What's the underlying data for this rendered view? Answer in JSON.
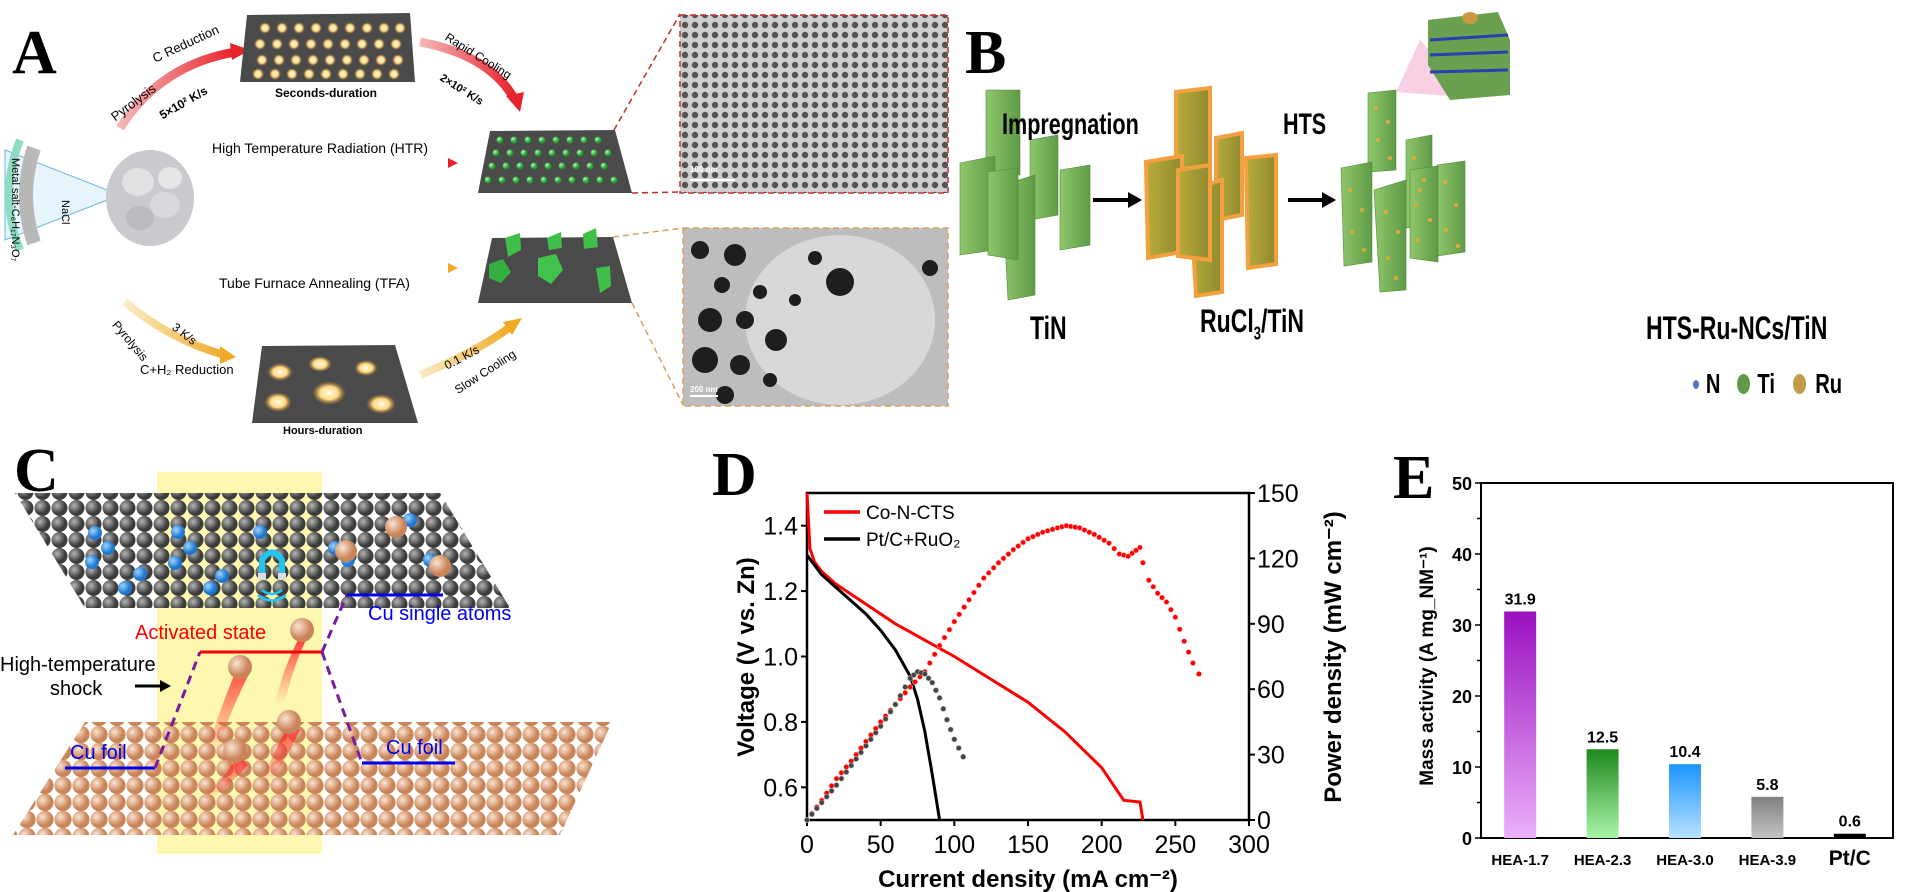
{
  "panels": {
    "A": {
      "letter": "A",
      "precursor_label": "Metal salt-C₆H₁₇N₃O₇",
      "nacl_label": "NaCl",
      "top_arrow_1": {
        "line1": "Pyrolysis",
        "line2": "C Reduction",
        "rate": "5×10² K/s"
      },
      "top_stage_label": "Seconds-duration",
      "top_arrow_2": {
        "label": "Rapid Cooling",
        "rate": "2×10² K/s"
      },
      "htr_label": "High Temperature Radiation (HTR)",
      "tfa_label": "Tube Furnace Annealing (TFA)",
      "bottom_arrow_1": {
        "line1": "Pyrolysis",
        "rate": "3 K/s",
        "line2": "C+H₂ Reduction"
      },
      "bottom_stage_label": "Hours-duration",
      "bottom_arrow_2": {
        "rate": "0.1 K/s",
        "label": "Slow Cooling"
      },
      "tem_top_scale": "100 nm",
      "tem_bottom_scale": "200 nm",
      "colors": {
        "fast": "#e8212a",
        "slow": "#f2b233",
        "particle_green": "#3fbf4a",
        "substrate": "#4a4a4a"
      }
    },
    "B": {
      "letter": "B",
      "step1_label": "TiN",
      "arrow1_label": "Impregnation",
      "step2_label_main": "RuCl",
      "step2_label_sub": "3",
      "step2_label_tail": "/TiN",
      "arrow2_label": "HTS",
      "step3_label": "HTS-Ru-NCs/TiN",
      "legend": [
        {
          "symbol": "N",
          "color": "#5a6fc0"
        },
        {
          "symbol": "Ti",
          "color": "#5f9a48"
        },
        {
          "symbol": "Ru",
          "color": "#c19a4a"
        }
      ]
    },
    "C": {
      "letter": "C",
      "activated_state": "Activated state",
      "shock_label_line1": "High-temperature",
      "shock_label_line2": "shock",
      "single_atoms_label": "Cu single atoms",
      "cu_foil_left": "Cu foil",
      "cu_foil_right": "Cu foil",
      "colors": {
        "activated": "#ff0000",
        "path": "#0000ee",
        "highlight": "#fdf7b0",
        "carbon": "#606060",
        "nitrogen": "#2e8ee0",
        "copper": "#e0a57a"
      }
    },
    "D": {
      "letter": "D"
    },
    "E": {
      "letter": "E"
    }
  },
  "chart_data": [
    {
      "panel": "D",
      "type": "line",
      "title": "",
      "xlabel": "Current density (mA cm⁻²)",
      "ylabel": "Voltage (V vs. Zn)",
      "y2label": "Power density (mW cm⁻²)",
      "xlim": [
        0,
        300
      ],
      "ylim": [
        0.5,
        1.5
      ],
      "y2lim": [
        0,
        150
      ],
      "x_ticks": [
        "0",
        "50",
        "100",
        "150",
        "200",
        "250",
        "300"
      ],
      "y_ticks": [
        "0.6",
        "0.8",
        "1.0",
        "1.2",
        "1.4"
      ],
      "y2_ticks": [
        "0",
        "30",
        "60",
        "90",
        "120",
        "150"
      ],
      "legend": [
        {
          "name": "Co-N-CTS",
          "color": "#ff0000"
        },
        {
          "name": "Pt/C+RuO₂",
          "color": "#000000"
        }
      ],
      "legend_position": "upper left",
      "series": [
        {
          "name": "Co-N-CTS polarization",
          "axis": "left",
          "color": "#ff0000",
          "style": "line",
          "x": [
            0,
            2,
            5,
            10,
            20,
            40,
            60,
            80,
            100,
            125,
            150,
            175,
            200,
            215,
            226,
            228
          ],
          "y": [
            1.5,
            1.33,
            1.29,
            1.26,
            1.22,
            1.16,
            1.1,
            1.05,
            1.0,
            0.93,
            0.86,
            0.77,
            0.66,
            0.56,
            0.555,
            0.5
          ]
        },
        {
          "name": "Pt/C+RuO₂ polarization",
          "axis": "left",
          "color": "#000000",
          "style": "line",
          "x": [
            0,
            5,
            10,
            20,
            30,
            40,
            50,
            60,
            70,
            75,
            80,
            85,
            90
          ],
          "y": [
            1.31,
            1.28,
            1.25,
            1.21,
            1.17,
            1.13,
            1.08,
            1.02,
            0.94,
            0.87,
            0.77,
            0.64,
            0.5
          ]
        },
        {
          "name": "Co-N-CTS power density",
          "axis": "right",
          "color": "#ff0000",
          "style": "markers",
          "x": [
            0,
            10,
            20,
            30,
            40,
            50,
            60,
            70,
            80,
            90,
            100,
            110,
            120,
            130,
            140,
            150,
            160,
            170,
            176,
            185,
            195,
            205,
            212,
            218,
            226,
            228,
            232,
            238,
            244,
            250,
            256,
            262,
            266
          ],
          "y": [
            0,
            9,
            19,
            27,
            36,
            45,
            53,
            61,
            68,
            80,
            91,
            101,
            111,
            118,
            124,
            129,
            132,
            134,
            135,
            134,
            131,
            127,
            122,
            121,
            125,
            118,
            110,
            104,
            100,
            93,
            82,
            72,
            67
          ]
        },
        {
          "name": "Pt/C+RuO₂ power density",
          "axis": "right",
          "color": "#444444",
          "style": "markers",
          "x": [
            0,
            10,
            20,
            30,
            40,
            50,
            60,
            70,
            75,
            80,
            85,
            90,
            95,
            100,
            106
          ],
          "y": [
            0,
            8,
            16,
            25,
            34,
            43,
            53,
            65,
            68,
            67,
            63,
            56,
            46,
            37,
            29
          ]
        }
      ]
    },
    {
      "panel": "E",
      "type": "bar",
      "title": "",
      "xlabel": "",
      "ylabel": "Mass activity (A mg_NM⁻¹)",
      "ylim": [
        0,
        50
      ],
      "y_ticks": [
        "0",
        "10",
        "20",
        "30",
        "40",
        "50"
      ],
      "categories": [
        "HEA-1.7",
        "HEA-2.3",
        "HEA-3.0",
        "HEA-3.9",
        "Pt/C"
      ],
      "values": [
        31.9,
        12.5,
        10.4,
        5.8,
        0.6
      ],
      "value_labels": [
        "31.9",
        "12.5",
        "10.4",
        "5.8",
        "0.6"
      ],
      "colors_top": [
        "#9a10c0",
        "#1e8a1e",
        "#1a96ff",
        "#808080",
        "#000000"
      ],
      "colors_bottom": [
        "#ecb0fa",
        "#aaf5a8",
        "#b8e0ff",
        "#c4c4c4",
        "#000000"
      ]
    }
  ]
}
